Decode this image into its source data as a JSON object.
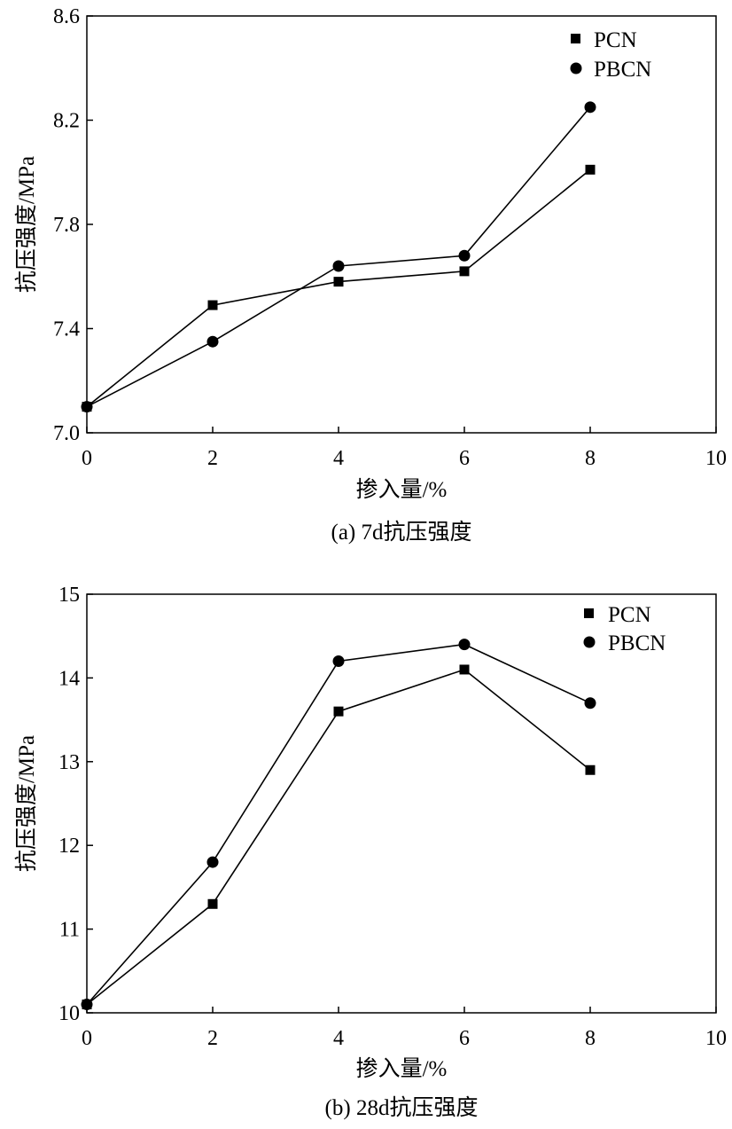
{
  "chart_data": [
    {
      "type": "line",
      "title": "",
      "caption": "(a) 7d抗压强度",
      "xlabel": "掺入量/%",
      "ylabel": "抗压强度/MPa",
      "xlim": [
        0,
        10
      ],
      "ylim": [
        7.0,
        8.6
      ],
      "xticks": [
        0,
        2,
        4,
        6,
        8,
        10
      ],
      "xtick_labels": [
        "0",
        "2",
        "4",
        "6",
        "8",
        "10"
      ],
      "yticks": [
        7.0,
        7.4,
        7.8,
        8.2,
        8.6
      ],
      "ytick_labels": [
        "7.0",
        "7.4",
        "7.8",
        "8.2",
        "8.6"
      ],
      "legend_position": "top-right",
      "x": [
        0,
        2,
        4,
        6,
        8
      ],
      "series": [
        {
          "name": "PCN",
          "marker": "square",
          "values": [
            7.1,
            7.49,
            7.58,
            7.62,
            8.01
          ]
        },
        {
          "name": "PBCN",
          "marker": "circle",
          "values": [
            7.1,
            7.35,
            7.64,
            7.68,
            8.25
          ]
        }
      ]
    },
    {
      "type": "line",
      "title": "",
      "caption": "(b) 28d抗压强度",
      "xlabel": "掺入量/%",
      "ylabel": "抗压强度/MPa",
      "xlim": [
        0,
        10
      ],
      "ylim": [
        10,
        15
      ],
      "xticks": [
        0,
        2,
        4,
        6,
        8,
        10
      ],
      "xtick_labels": [
        "0",
        "2",
        "4",
        "6",
        "8",
        "10"
      ],
      "yticks": [
        10,
        11,
        12,
        13,
        14,
        15
      ],
      "ytick_labels": [
        "10",
        "11",
        "12",
        "13",
        "14",
        "15"
      ],
      "legend_position": "top-right",
      "x": [
        0,
        2,
        4,
        6,
        8
      ],
      "series": [
        {
          "name": "PCN",
          "marker": "square",
          "values": [
            10.1,
            11.3,
            13.6,
            14.1,
            12.9
          ]
        },
        {
          "name": "PBCN",
          "marker": "circle",
          "values": [
            10.1,
            11.8,
            14.2,
            14.4,
            13.7
          ]
        }
      ]
    }
  ]
}
